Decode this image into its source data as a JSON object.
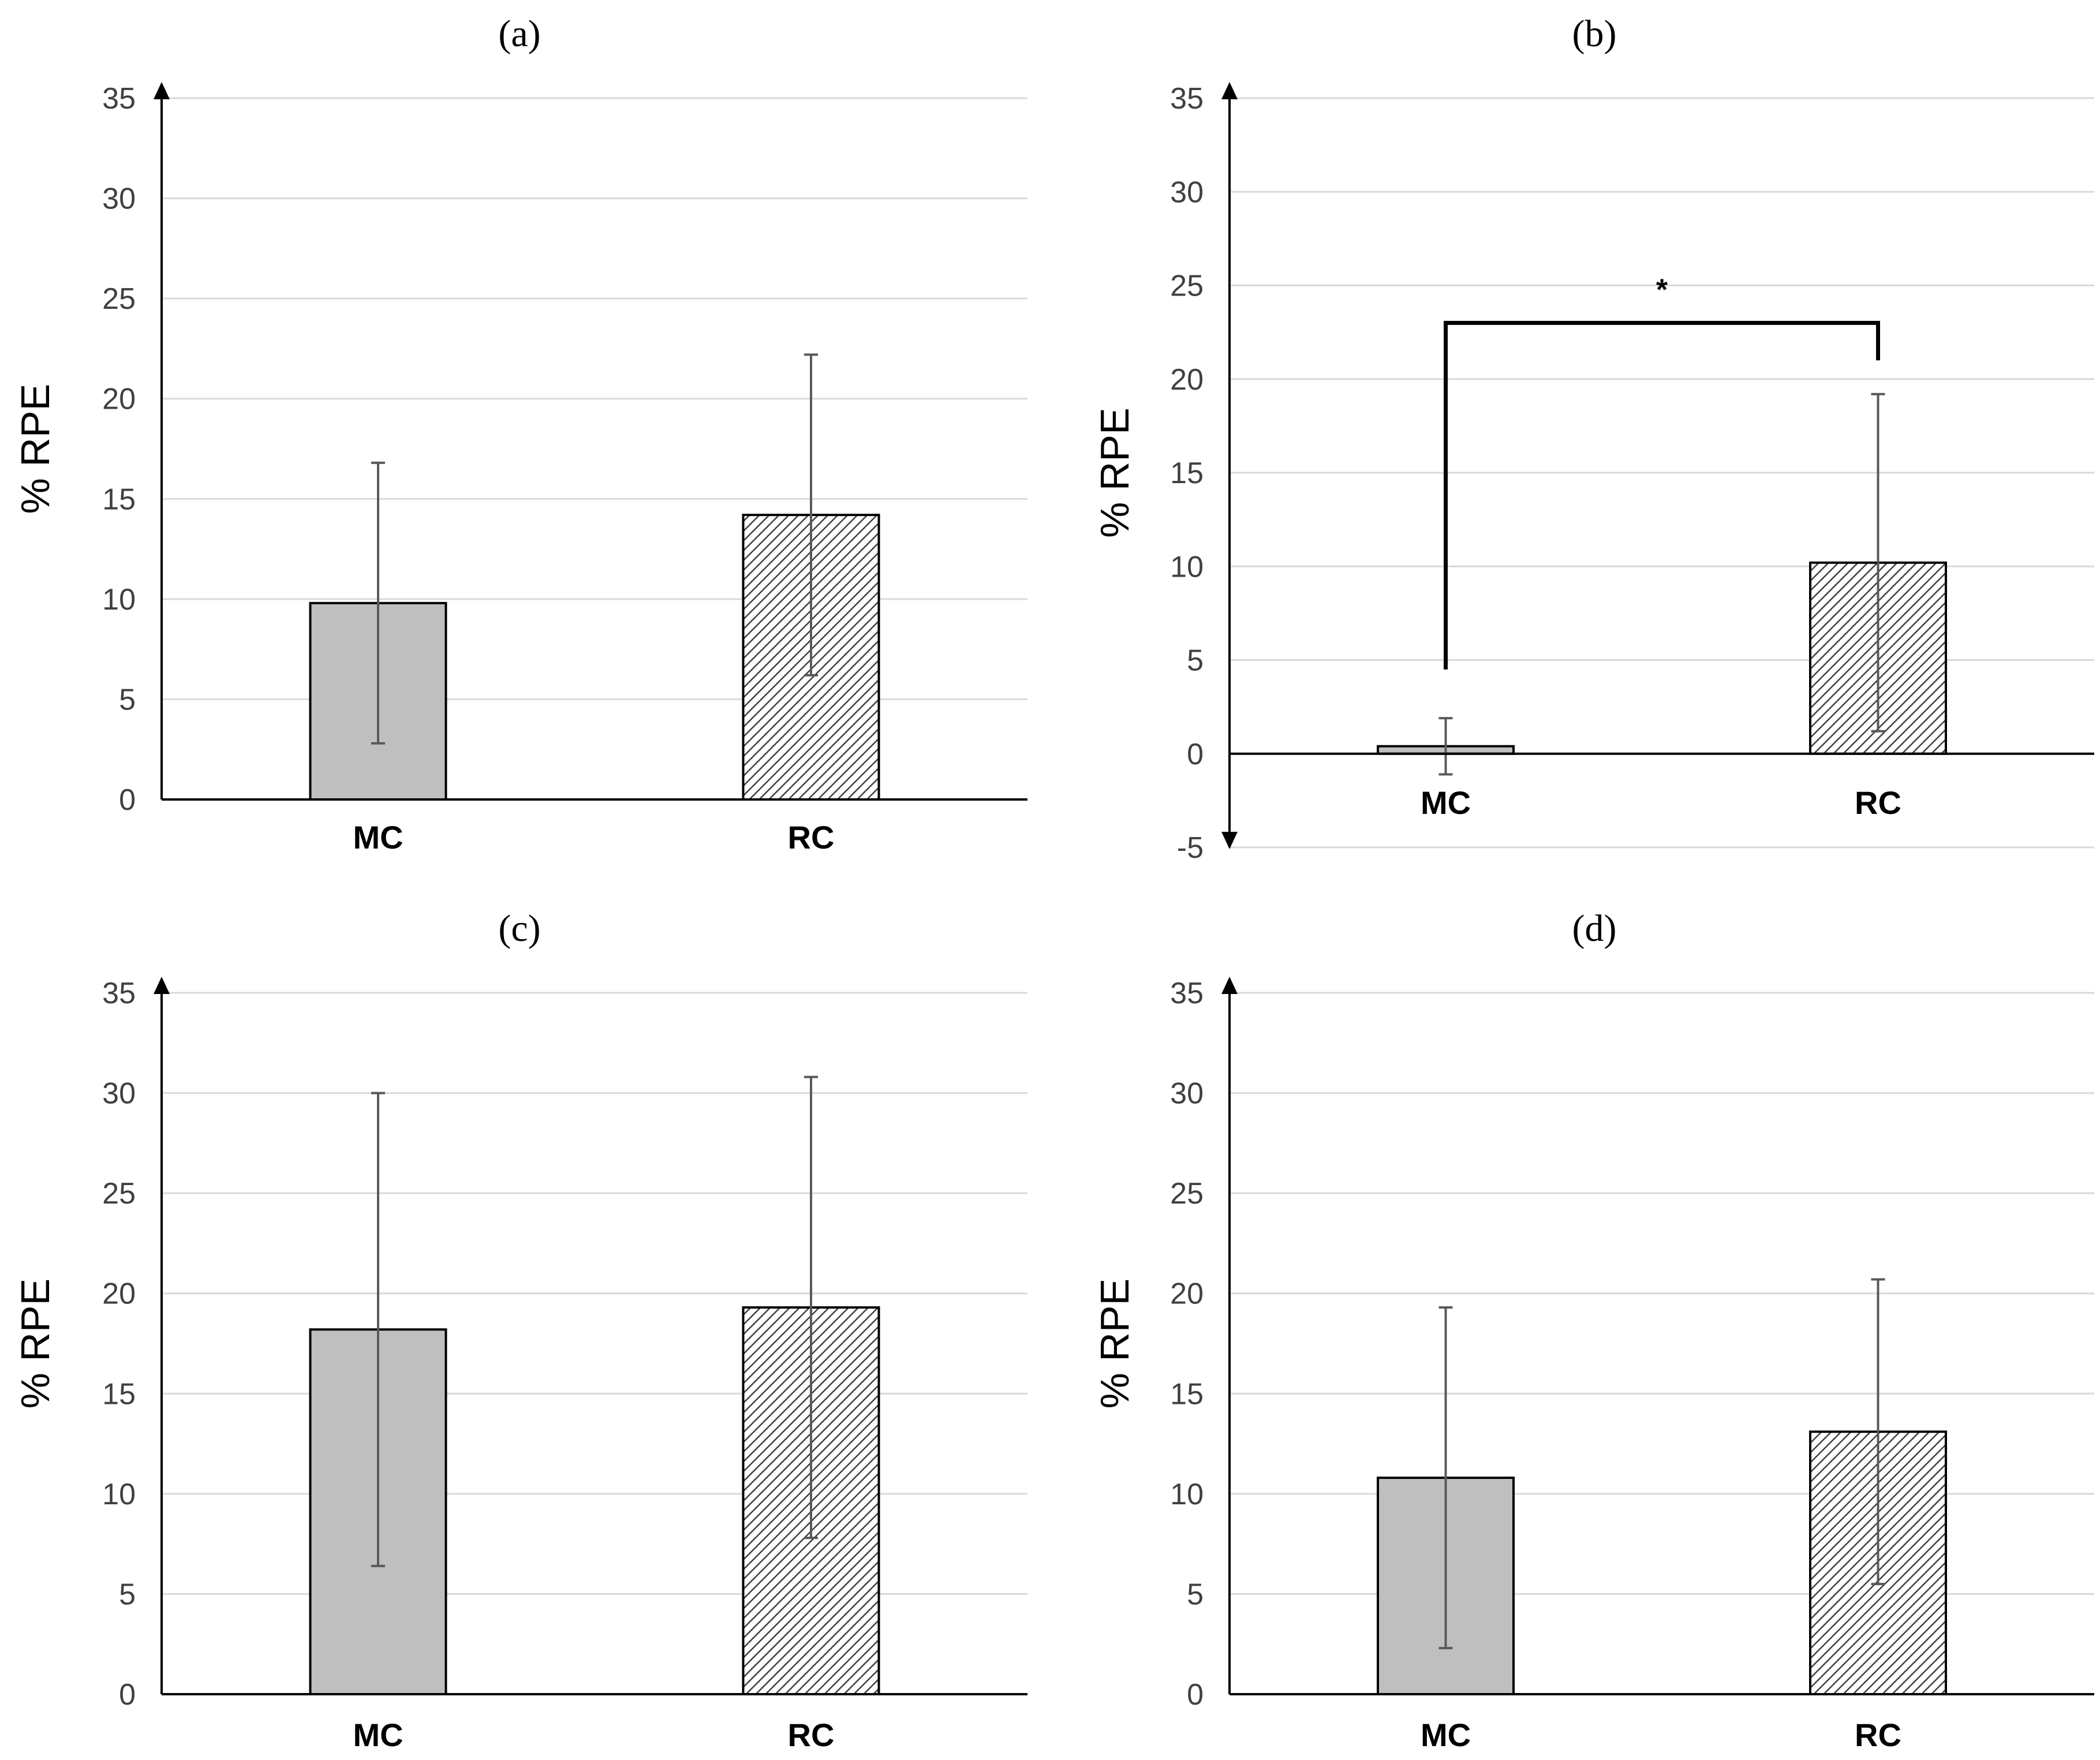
{
  "chart_data": [
    {
      "panel": "a",
      "type": "bar",
      "title": "(a)",
      "categories": [
        "MC",
        "RC"
      ],
      "values": [
        9.8,
        14.2
      ],
      "errors": [
        7.0,
        8.0
      ],
      "ylabel": "% RPE",
      "xlabel": "",
      "ylim": [
        0,
        35
      ],
      "yticks": [
        0,
        5,
        10,
        15,
        20,
        25,
        30,
        35
      ],
      "grid": true,
      "significance": null
    },
    {
      "panel": "b",
      "type": "bar",
      "title": "(b)",
      "categories": [
        "MC",
        "RC"
      ],
      "values": [
        0.4,
        10.2
      ],
      "errors": [
        1.5,
        9.0
      ],
      "ylabel": "% RPE",
      "xlabel": "",
      "ylim": [
        -5,
        35
      ],
      "yticks": [
        -5,
        0,
        5,
        10,
        15,
        20,
        25,
        30,
        35
      ],
      "grid": true,
      "significance": {
        "label": "*",
        "between": [
          "MC",
          "RC"
        ],
        "level": 23
      }
    },
    {
      "panel": "c",
      "type": "bar",
      "title": "(c)",
      "categories": [
        "MC",
        "RC"
      ],
      "values": [
        18.2,
        19.3
      ],
      "errors": [
        11.8,
        11.5
      ],
      "ylabel": "% RPE",
      "xlabel": "",
      "ylim": [
        0,
        35
      ],
      "yticks": [
        0,
        5,
        10,
        15,
        20,
        25,
        30,
        35
      ],
      "grid": true,
      "significance": null
    },
    {
      "panel": "d",
      "type": "bar",
      "title": "(d)",
      "categories": [
        "MC",
        "RC"
      ],
      "values": [
        10.8,
        13.1
      ],
      "errors": [
        8.5,
        7.6
      ],
      "ylabel": "% RPE",
      "xlabel": "",
      "ylim": [
        0,
        35
      ],
      "yticks": [
        0,
        5,
        10,
        15,
        20,
        25,
        30,
        35
      ],
      "grid": true,
      "significance": null
    }
  ],
  "styles": {
    "mc_fill": "#bfbfbf",
    "rc_fill": "#ffffff",
    "rc_hatch": "#404040",
    "bar_stroke": "#000000",
    "error_bar": "#595959",
    "grid": "#d9d9d9",
    "axis": "#000000"
  }
}
